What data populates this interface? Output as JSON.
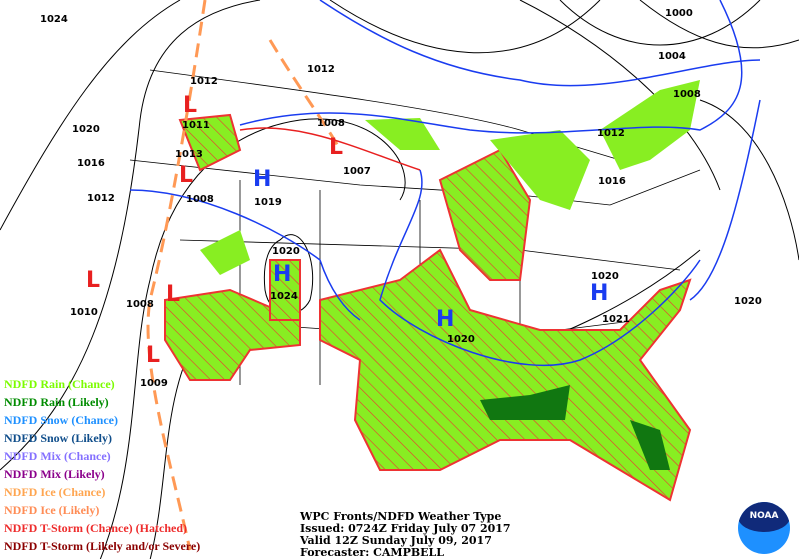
{
  "map": {
    "pressure_labels": [
      "1024",
      "1000",
      "1004",
      "1008",
      "1012",
      "1016",
      "1012",
      "1012",
      "1011",
      "1013",
      "1008",
      "1020",
      "1016",
      "1012",
      "1008",
      "1007",
      "1019",
      "1020",
      "1024",
      "1008",
      "1010",
      "1009",
      "1020",
      "1020",
      "1021",
      "1020"
    ],
    "high_symbol": "H",
    "low_symbol": "L",
    "high_count": 4,
    "low_count": 6,
    "colors": {
      "high": "#1a3cf0",
      "low": "#e82020",
      "cold_front": "#1a3cf0",
      "warm_front": "#e82020",
      "rain_chance": "#88ee22",
      "rain_likely": "#117711",
      "tstorm_chance": "#ee3333",
      "ice": "#ff9955"
    }
  },
  "legend": [
    {
      "label": "NDFD Rain (Chance)",
      "color": "#7cfc00"
    },
    {
      "label": "NDFD Rain (Likely)",
      "color": "#008c00"
    },
    {
      "label": "NDFD Snow (Chance)",
      "color": "#1e90ff"
    },
    {
      "label": "NDFD Snow (Likely)",
      "color": "#104e8b"
    },
    {
      "label": "NDFD Mix (Chance)",
      "color": "#8470ff"
    },
    {
      "label": "NDFD Mix (Likely)",
      "color": "#8b008b"
    },
    {
      "label": "NDFD Ice (Chance)",
      "color": "#ffa54f"
    },
    {
      "label": "NDFD Ice (Likely)",
      "color": "#ff8c55"
    },
    {
      "label": "NDFD T-Storm (Chance) (Hatched)",
      "color": "#ee2c2c"
    },
    {
      "label": "NDFD T-Storm (Likely and/or Severe)",
      "color": "#8b0000"
    }
  ],
  "info": {
    "title": "WPC Fronts/NDFD Weather Type",
    "issued": "Issued: 0724Z Friday July 07 2017",
    "valid": "Valid 12Z Sunday July 09, 2017",
    "forecaster": "Forecaster: CAMPBELL"
  },
  "logo": {
    "text": "NOAA"
  }
}
